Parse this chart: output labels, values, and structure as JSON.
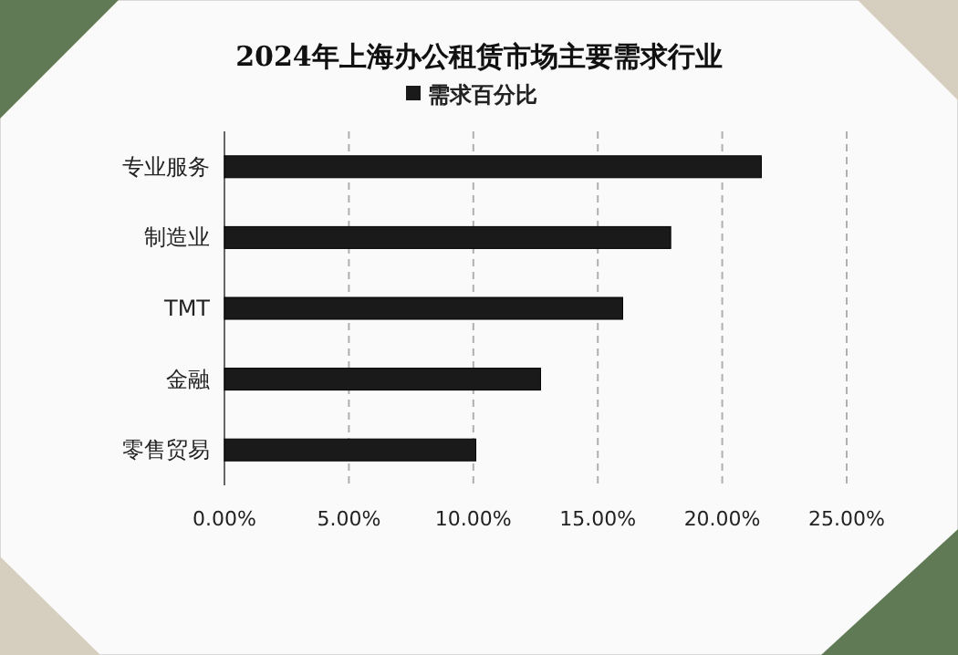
{
  "chart_data": {
    "type": "bar",
    "orientation": "horizontal",
    "title": "2024年上海办公租赁市场主要需求行业",
    "categories": [
      "专业服务",
      "制造业",
      "TMT",
      "金融",
      "零售贸易"
    ],
    "series": [
      {
        "name": "需求百分比",
        "color": "#1a1a1a",
        "values": [
          21.57,
          17.93,
          16.0,
          12.7,
          10.1
        ]
      }
    ],
    "xlim": [
      0,
      25
    ],
    "xticks": [
      {
        "value": 0,
        "label": "0.00%"
      },
      {
        "value": 5,
        "label": "5.00%"
      },
      {
        "value": 10,
        "label": "10.00%"
      },
      {
        "value": 15,
        "label": "15.00%"
      },
      {
        "value": 20,
        "label": "20.00%"
      },
      {
        "value": 25,
        "label": "25.00%"
      }
    ],
    "grid": "x",
    "legend": "top"
  }
}
